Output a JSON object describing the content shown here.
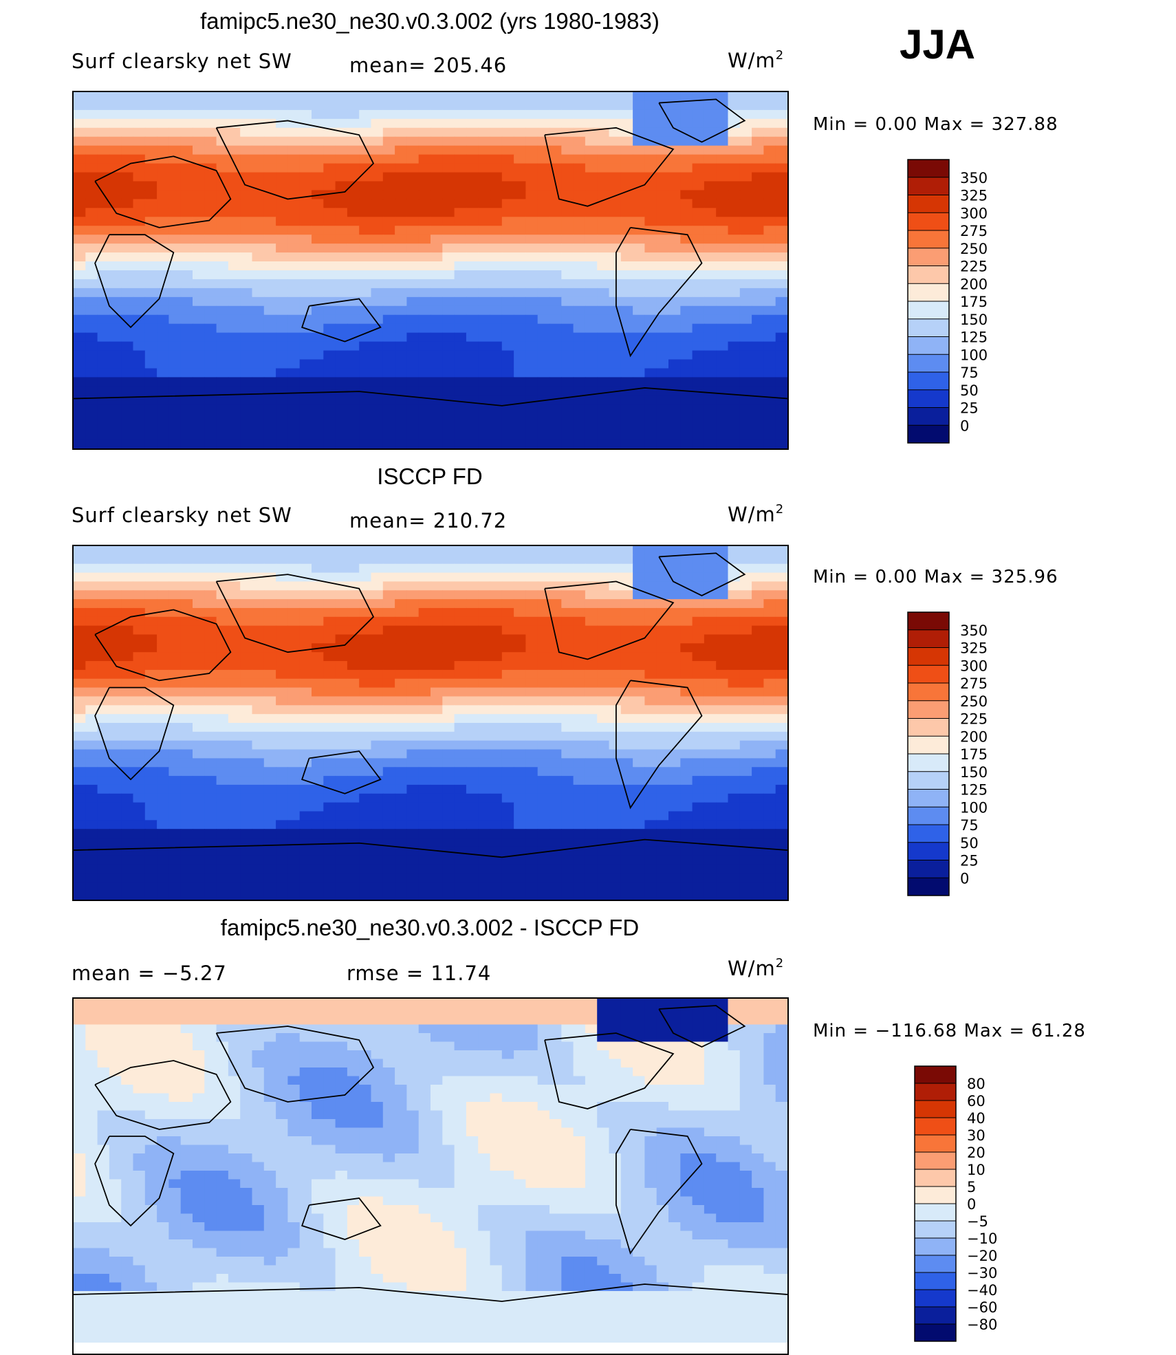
{
  "season": "JJA",
  "chart_data": [
    {
      "type": "heatmap",
      "title": "famipc5.ne30_ne30.v0.3.002 (yrs 1980-1983)",
      "field": "Surf clearsky net SW",
      "mean_label": "mean= 205.46",
      "units_base": "W/m",
      "units_exp": "2",
      "min_max": "Min =     0.00  Max  =  327.88",
      "colorbar": {
        "labels": [
          "350",
          "325",
          "300",
          "275",
          "250",
          "225",
          "200",
          "175",
          "150",
          "125",
          "100",
          "75",
          "50",
          "25",
          "0"
        ],
        "colors": [
          "#7a0a05",
          "#b01e06",
          "#d63604",
          "#ef4f16",
          "#f87539",
          "#fb9d73",
          "#fdc8aa",
          "#fdebd9",
          "#d8eaf9",
          "#b6d1f8",
          "#8fb3f6",
          "#5d8cf1",
          "#2f62e8",
          "#1539cc",
          "#0a1f9c",
          "#020b6f"
        ]
      },
      "colormap": "reds_blues"
    },
    {
      "type": "heatmap",
      "title": "ISCCP FD",
      "field": "Surf clearsky net SW",
      "mean_label": "mean= 210.72",
      "units_base": "W/m",
      "units_exp": "2",
      "min_max": "Min =     0.00  Max  =  325.96",
      "colorbar": {
        "labels": [
          "350",
          "325",
          "300",
          "275",
          "250",
          "225",
          "200",
          "175",
          "150",
          "125",
          "100",
          "75",
          "50",
          "25",
          "0"
        ],
        "colors": [
          "#7a0a05",
          "#b01e06",
          "#d63604",
          "#ef4f16",
          "#f87539",
          "#fb9d73",
          "#fdc8aa",
          "#fdebd9",
          "#d8eaf9",
          "#b6d1f8",
          "#8fb3f6",
          "#5d8cf1",
          "#2f62e8",
          "#1539cc",
          "#0a1f9c",
          "#020b6f"
        ]
      },
      "colormap": "reds_blues"
    },
    {
      "type": "heatmap",
      "title": "famipc5.ne30_ne30.v0.3.002 - ISCCP FD",
      "mean_label": "mean  =    −5.27",
      "rmse_label": "rmse  =    11.74",
      "units_base": "W/m",
      "units_exp": "2",
      "min_max": "Min  = −116.68  Max  =    61.28",
      "colorbar": {
        "labels": [
          "80",
          "60",
          "40",
          "30",
          "20",
          "10",
          "5",
          "0",
          "−5",
          "−10",
          "−20",
          "−30",
          "−40",
          "−60",
          "−80"
        ],
        "colors": [
          "#7a0a05",
          "#b01e06",
          "#d63604",
          "#ef4f16",
          "#f87539",
          "#fb9d73",
          "#fdc8aa",
          "#fdebd9",
          "#d8eaf9",
          "#b6d1f8",
          "#8fb3f6",
          "#5d8cf1",
          "#2f62e8",
          "#1539cc",
          "#0a1f9c",
          "#020b6f"
        ]
      },
      "colormap": "diff"
    }
  ]
}
